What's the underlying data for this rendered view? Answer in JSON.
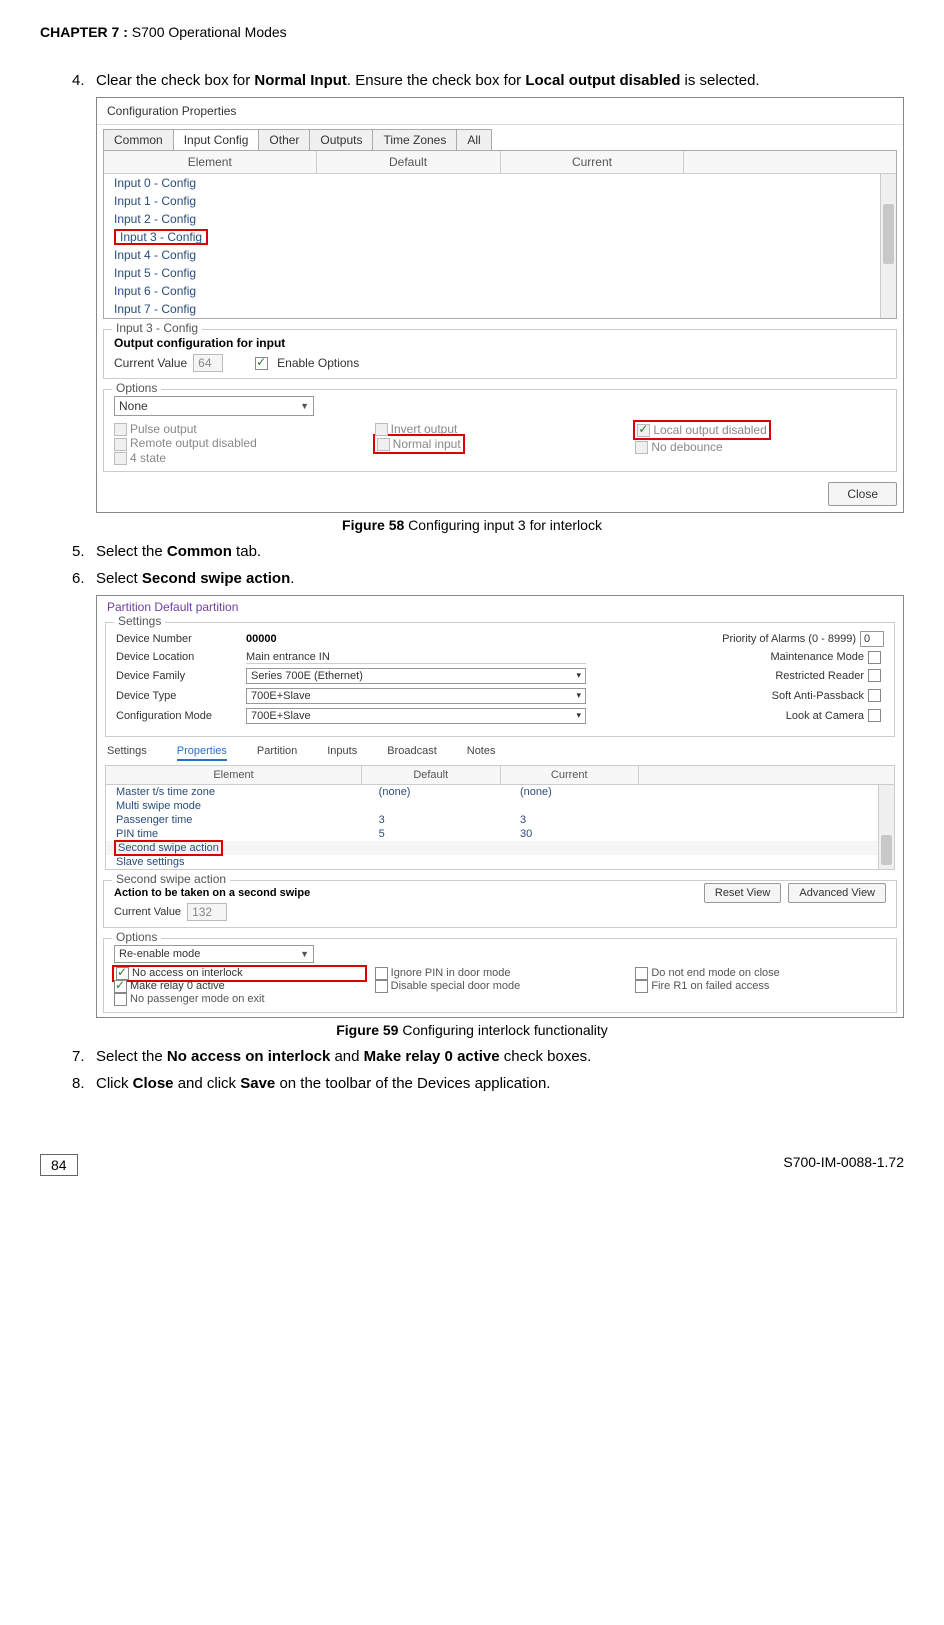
{
  "header": {
    "chapter": "CHAPTER  7 : ",
    "title": "S700 Operational Modes"
  },
  "step4": {
    "num": "4.",
    "pre": "Clear the check box for ",
    "b1": "Normal Input",
    "mid": ". Ensure the check box for ",
    "b2": "Local output disabled",
    "post": " is selected."
  },
  "fig58": {
    "label": "Figure 58",
    "text": " Configuring input 3 for interlock"
  },
  "step5": {
    "num": "5.",
    "pre": "Select the ",
    "b1": "Common",
    "post": " tab."
  },
  "step6": {
    "num": "6.",
    "pre": "Select ",
    "b1": "Second swipe action",
    "post": "."
  },
  "fig59": {
    "label": "Figure 59",
    "text": " Configuring interlock functionality"
  },
  "step7": {
    "num": "7.",
    "pre": "Select the ",
    "b1": "No access on interlock",
    "mid": " and ",
    "b2": "Make relay 0 active",
    "post": " check boxes."
  },
  "step8": {
    "num": "8.",
    "pre": "Click ",
    "b1": "Close",
    "mid": " and click ",
    "b2": "Save",
    "post": " on the toolbar of the Devices application."
  },
  "footer": {
    "page": "84",
    "doc": "S700-IM-0088-1.72"
  },
  "ss1": {
    "title": "Configuration Properties",
    "tabs": [
      "Common",
      "Input Config",
      "Other",
      "Outputs",
      "Time Zones",
      "All"
    ],
    "active_tab_index": 1,
    "thead": [
      "Element",
      "Default",
      "Current",
      ""
    ],
    "rows": [
      "Input 0 - Config",
      "Input 1 - Config",
      "Input 2 - Config",
      "Input 3 - Config",
      "Input 4 - Config",
      "Input 5 - Config",
      "Input 6 - Config",
      "Input 7 - Config"
    ],
    "selected_row_index": 3,
    "detail_legend": "Input 3 - Config",
    "detail_bold": "Output configuration for input",
    "current_value_label": "Current Value",
    "current_value": "64",
    "enable_options_label": "Enable Options",
    "options_legend": "Options",
    "select_value": "None",
    "opts": {
      "c1": [
        "Pulse output",
        "Remote output disabled",
        "4 state"
      ],
      "c2": [
        "Invert output",
        "Normal input"
      ],
      "c3": [
        "Local output disabled",
        "No debounce"
      ]
    },
    "close": "Close"
  },
  "ss2": {
    "title": "Partition  Default partition",
    "settings_legend": "Settings",
    "rows_top": [
      {
        "label": "Device Number",
        "value": "00000",
        "right_label": "Priority of Alarms (0 - 8999)",
        "right_val": "0",
        "right_type": "input"
      },
      {
        "label": "Device Location",
        "value": "Main entrance IN",
        "value_type": "text",
        "right_label": "Maintenance Mode"
      },
      {
        "label": "Device Family",
        "value": "Series 700E (Ethernet)",
        "value_type": "select",
        "right_label": "Restricted Reader"
      },
      {
        "label": "Device Type",
        "value": "700E+Slave",
        "value_type": "select",
        "right_label": "Soft Anti-Passback"
      },
      {
        "label": "Configuration Mode",
        "value": "700E+Slave",
        "value_type": "select",
        "right_label": "Look at Camera"
      }
    ],
    "tabs2": [
      "Settings",
      "Properties",
      "Partition",
      "Inputs",
      "Broadcast",
      "Notes"
    ],
    "active_tab2_index": 1,
    "thead2": [
      "Element",
      "Default",
      "Current",
      ""
    ],
    "rows2": [
      {
        "e": "Master t/s time zone",
        "d": "(none)",
        "c": "(none)"
      },
      {
        "e": "Multi swipe mode",
        "d": "",
        "c": ""
      },
      {
        "e": "Passenger time",
        "d": "3",
        "c": "3"
      },
      {
        "e": "PIN time",
        "d": "5",
        "c": "30"
      },
      {
        "e": "Second swipe action",
        "d": "",
        "c": "",
        "sel": true
      },
      {
        "e": "Slave settings",
        "d": "",
        "c": ""
      }
    ],
    "action_legend": "Second swipe action",
    "action_bold": "Action to be taken on a second swipe",
    "reset_btn": "Reset View",
    "adv_btn": "Advanced View",
    "current_value_label": "Current Value",
    "current_value": "132",
    "options_legend": "Options",
    "select_value": "Re-enable mode",
    "opts": {
      "c1": [
        "No access on interlock",
        "Make relay 0 active",
        "No passenger mode on exit"
      ],
      "c2": [
        "Ignore PIN in door mode",
        "Disable special door mode"
      ],
      "c3": [
        "Do not end mode on close",
        "Fire R1 on failed access"
      ]
    }
  }
}
